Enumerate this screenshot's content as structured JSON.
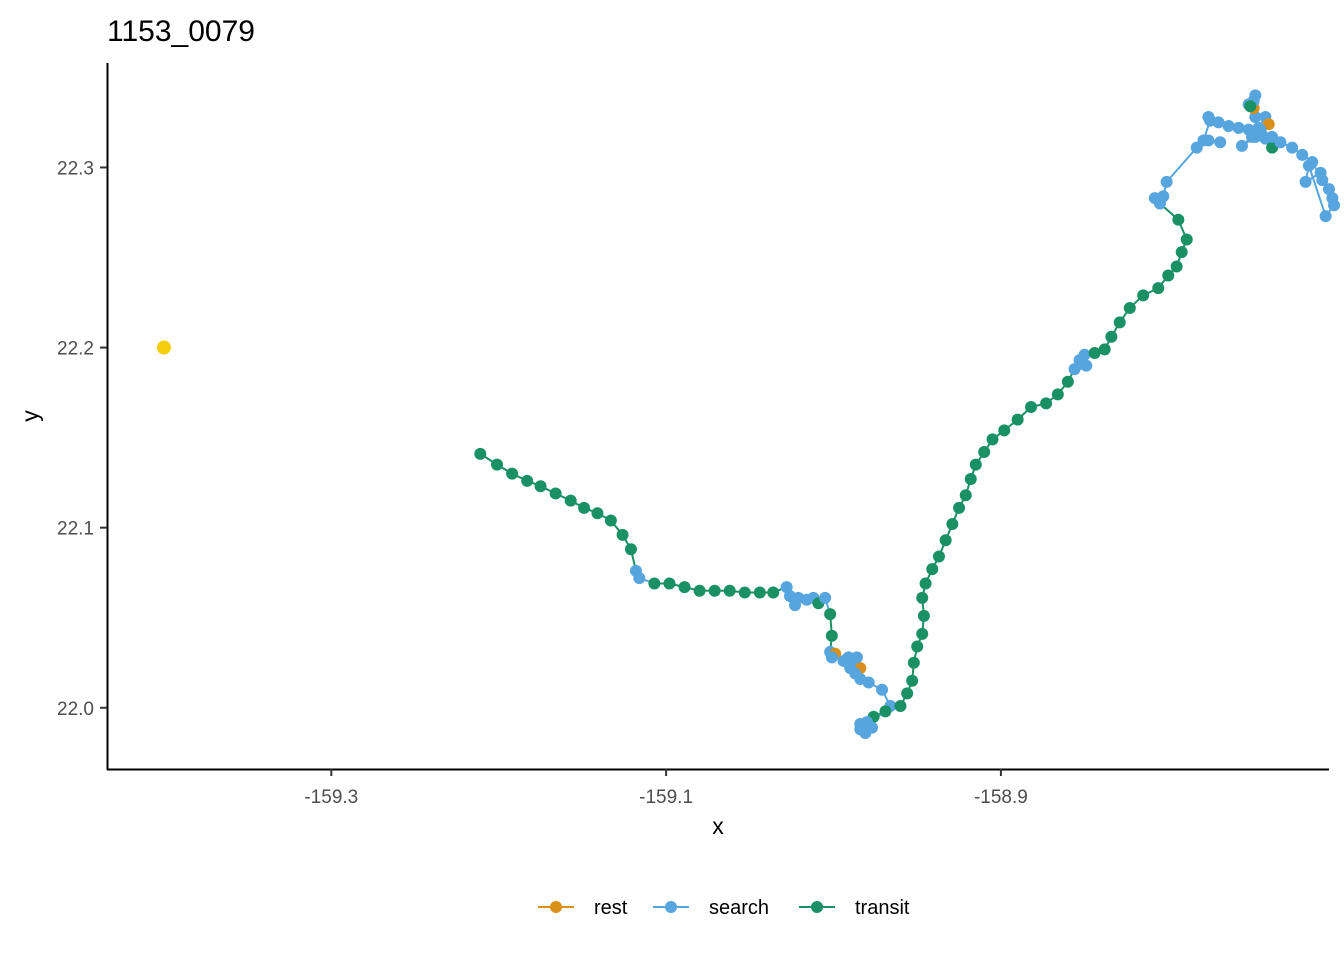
{
  "chart_data": {
    "type": "line",
    "title": "1153_0079",
    "xlabel": "x",
    "ylabel": "y",
    "xlim": [
      -159.434,
      -158.704
    ],
    "ylim": [
      21.966,
      22.358
    ],
    "x_ticks": [
      {
        "value": -159.3,
        "label": "-159.3"
      },
      {
        "value": -159.1,
        "label": "-159.1"
      },
      {
        "value": -158.9,
        "label": "-158.9"
      }
    ],
    "y_ticks": [
      {
        "value": 22.0,
        "label": "22.0"
      },
      {
        "value": 22.1,
        "label": "22.1"
      },
      {
        "value": 22.2,
        "label": "22.2"
      },
      {
        "value": 22.3,
        "label": "22.3"
      }
    ],
    "grid": false,
    "legend_position": "bottom",
    "legend": [
      {
        "key": "rest",
        "label": "rest",
        "color": "#D8901A"
      },
      {
        "key": "search",
        "label": "search",
        "color": "#56A5DF"
      },
      {
        "key": "transit",
        "label": "transit",
        "color": "#1A9165"
      }
    ],
    "reference_point": {
      "x": -159.4,
      "y": 22.2,
      "color": "#F5CE0C"
    },
    "track": [
      {
        "x": -159.211,
        "y": 22.141,
        "s": "transit"
      },
      {
        "x": -159.201,
        "y": 22.135,
        "s": "transit"
      },
      {
        "x": -159.192,
        "y": 22.13,
        "s": "transit"
      },
      {
        "x": -159.183,
        "y": 22.126,
        "s": "transit"
      },
      {
        "x": -159.175,
        "y": 22.123,
        "s": "transit"
      },
      {
        "x": -159.166,
        "y": 22.119,
        "s": "transit"
      },
      {
        "x": -159.157,
        "y": 22.115,
        "s": "transit"
      },
      {
        "x": -159.149,
        "y": 22.111,
        "s": "transit"
      },
      {
        "x": -159.141,
        "y": 22.108,
        "s": "transit"
      },
      {
        "x": -159.133,
        "y": 22.104,
        "s": "transit"
      },
      {
        "x": -159.126,
        "y": 22.096,
        "s": "transit"
      },
      {
        "x": -159.121,
        "y": 22.088,
        "s": "transit"
      },
      {
        "x": -159.118,
        "y": 22.076,
        "s": "search"
      },
      {
        "x": -159.116,
        "y": 22.072,
        "s": "search"
      },
      {
        "x": -159.107,
        "y": 22.069,
        "s": "transit"
      },
      {
        "x": -159.098,
        "y": 22.069,
        "s": "transit"
      },
      {
        "x": -159.089,
        "y": 22.067,
        "s": "transit"
      },
      {
        "x": -159.08,
        "y": 22.065,
        "s": "transit"
      },
      {
        "x": -159.071,
        "y": 22.065,
        "s": "transit"
      },
      {
        "x": -159.062,
        "y": 22.065,
        "s": "transit"
      },
      {
        "x": -159.053,
        "y": 22.064,
        "s": "transit"
      },
      {
        "x": -159.044,
        "y": 22.064,
        "s": "transit"
      },
      {
        "x": -159.036,
        "y": 22.064,
        "s": "transit"
      },
      {
        "x": -159.028,
        "y": 22.067,
        "s": "search"
      },
      {
        "x": -159.026,
        "y": 22.062,
        "s": "search"
      },
      {
        "x": -159.023,
        "y": 22.057,
        "s": "search"
      },
      {
        "x": -159.021,
        "y": 22.061,
        "s": "search"
      },
      {
        "x": -159.016,
        "y": 22.06,
        "s": "search"
      },
      {
        "x": -159.012,
        "y": 22.061,
        "s": "search"
      },
      {
        "x": -159.009,
        "y": 22.058,
        "s": "transit"
      },
      {
        "x": -159.005,
        "y": 22.061,
        "s": "search"
      },
      {
        "x": -159.002,
        "y": 22.052,
        "s": "transit"
      },
      {
        "x": -159.001,
        "y": 22.04,
        "s": "transit"
      },
      {
        "x": -159.002,
        "y": 22.031,
        "s": "search"
      },
      {
        "x": -158.999,
        "y": 22.03,
        "s": "rest"
      },
      {
        "x": -159.001,
        "y": 22.028,
        "s": "search"
      },
      {
        "x": -158.994,
        "y": 22.026,
        "s": "search"
      },
      {
        "x": -158.991,
        "y": 22.028,
        "s": "search"
      },
      {
        "x": -158.988,
        "y": 22.024,
        "s": "search"
      },
      {
        "x": -158.984,
        "y": 22.022,
        "s": "rest"
      },
      {
        "x": -158.986,
        "y": 22.028,
        "s": "search"
      },
      {
        "x": -158.99,
        "y": 22.022,
        "s": "search"
      },
      {
        "x": -158.987,
        "y": 22.019,
        "s": "search"
      },
      {
        "x": -158.984,
        "y": 22.016,
        "s": "search"
      },
      {
        "x": -158.979,
        "y": 22.014,
        "s": "search"
      },
      {
        "x": -158.971,
        "y": 22.01,
        "s": "search"
      },
      {
        "x": -158.966,
        "y": 22.001,
        "s": "search"
      },
      {
        "x": -158.969,
        "y": 21.998,
        "s": "transit"
      },
      {
        "x": -158.976,
        "y": 21.995,
        "s": "transit"
      },
      {
        "x": -158.981,
        "y": 21.991,
        "s": "search"
      },
      {
        "x": -158.984,
        "y": 21.988,
        "s": "search"
      },
      {
        "x": -158.981,
        "y": 21.986,
        "s": "search"
      },
      {
        "x": -158.977,
        "y": 21.989,
        "s": "search"
      },
      {
        "x": -158.98,
        "y": 21.992,
        "s": "search"
      },
      {
        "x": -158.984,
        "y": 21.991,
        "s": "search"
      },
      {
        "x": -158.96,
        "y": 22.001,
        "s": "transit"
      },
      {
        "x": -158.956,
        "y": 22.008,
        "s": "transit"
      },
      {
        "x": -158.953,
        "y": 22.015,
        "s": "transit"
      },
      {
        "x": -158.952,
        "y": 22.025,
        "s": "transit"
      },
      {
        "x": -158.95,
        "y": 22.034,
        "s": "transit"
      },
      {
        "x": -158.947,
        "y": 22.041,
        "s": "transit"
      },
      {
        "x": -158.946,
        "y": 22.051,
        "s": "transit"
      },
      {
        "x": -158.947,
        "y": 22.061,
        "s": "transit"
      },
      {
        "x": -158.945,
        "y": 22.069,
        "s": "transit"
      },
      {
        "x": -158.941,
        "y": 22.077,
        "s": "transit"
      },
      {
        "x": -158.937,
        "y": 22.084,
        "s": "transit"
      },
      {
        "x": -158.933,
        "y": 22.093,
        "s": "transit"
      },
      {
        "x": -158.929,
        "y": 22.102,
        "s": "transit"
      },
      {
        "x": -158.925,
        "y": 22.111,
        "s": "transit"
      },
      {
        "x": -158.921,
        "y": 22.118,
        "s": "transit"
      },
      {
        "x": -158.918,
        "y": 22.127,
        "s": "transit"
      },
      {
        "x": -158.915,
        "y": 22.135,
        "s": "transit"
      },
      {
        "x": -158.91,
        "y": 22.142,
        "s": "transit"
      },
      {
        "x": -158.905,
        "y": 22.149,
        "s": "transit"
      },
      {
        "x": -158.898,
        "y": 22.154,
        "s": "transit"
      },
      {
        "x": -158.89,
        "y": 22.16,
        "s": "transit"
      },
      {
        "x": -158.882,
        "y": 22.167,
        "s": "transit"
      },
      {
        "x": -158.873,
        "y": 22.169,
        "s": "transit"
      },
      {
        "x": -158.866,
        "y": 22.174,
        "s": "transit"
      },
      {
        "x": -158.86,
        "y": 22.181,
        "s": "transit"
      },
      {
        "x": -158.856,
        "y": 22.188,
        "s": "search"
      },
      {
        "x": -158.852,
        "y": 22.191,
        "s": "search"
      },
      {
        "x": -158.85,
        "y": 22.196,
        "s": "search"
      },
      {
        "x": -158.849,
        "y": 22.19,
        "s": "search"
      },
      {
        "x": -158.853,
        "y": 22.193,
        "s": "search"
      },
      {
        "x": -158.844,
        "y": 22.197,
        "s": "transit"
      },
      {
        "x": -158.838,
        "y": 22.199,
        "s": "transit"
      },
      {
        "x": -158.834,
        "y": 22.206,
        "s": "transit"
      },
      {
        "x": -158.829,
        "y": 22.214,
        "s": "transit"
      },
      {
        "x": -158.823,
        "y": 22.222,
        "s": "transit"
      },
      {
        "x": -158.815,
        "y": 22.229,
        "s": "transit"
      },
      {
        "x": -158.806,
        "y": 22.233,
        "s": "transit"
      },
      {
        "x": -158.8,
        "y": 22.24,
        "s": "transit"
      },
      {
        "x": -158.795,
        "y": 22.245,
        "s": "transit"
      },
      {
        "x": -158.792,
        "y": 22.253,
        "s": "transit"
      },
      {
        "x": -158.789,
        "y": 22.26,
        "s": "transit"
      },
      {
        "x": -158.794,
        "y": 22.271,
        "s": "transit"
      },
      {
        "x": -158.805,
        "y": 22.28,
        "s": "search"
      },
      {
        "x": -158.808,
        "y": 22.283,
        "s": "search"
      },
      {
        "x": -158.803,
        "y": 22.284,
        "s": "search"
      },
      {
        "x": -158.801,
        "y": 22.292,
        "s": "search"
      },
      {
        "x": -158.783,
        "y": 22.311,
        "s": "search"
      },
      {
        "x": -158.776,
        "y": 22.315,
        "s": "search"
      },
      {
        "x": -158.769,
        "y": 22.314,
        "s": "search"
      },
      {
        "x": -158.779,
        "y": 22.315,
        "s": "search"
      },
      {
        "x": -158.775,
        "y": 22.326,
        "s": "search"
      },
      {
        "x": -158.776,
        "y": 22.328,
        "s": "search"
      },
      {
        "x": -158.77,
        "y": 22.325,
        "s": "search"
      },
      {
        "x": -158.764,
        "y": 22.323,
        "s": "search"
      },
      {
        "x": -158.758,
        "y": 22.322,
        "s": "search"
      },
      {
        "x": -158.752,
        "y": 22.321,
        "s": "search"
      },
      {
        "x": -158.748,
        "y": 22.317,
        "s": "search"
      },
      {
        "x": -158.756,
        "y": 22.312,
        "s": "search"
      },
      {
        "x": -158.75,
        "y": 22.317,
        "s": "search"
      },
      {
        "x": -158.746,
        "y": 22.322,
        "s": "search"
      },
      {
        "x": -158.742,
        "y": 22.328,
        "s": "search"
      },
      {
        "x": -158.74,
        "y": 22.324,
        "s": "rest"
      },
      {
        "x": -158.745,
        "y": 22.321,
        "s": "search"
      },
      {
        "x": -158.742,
        "y": 22.316,
        "s": "search"
      },
      {
        "x": -158.738,
        "y": 22.311,
        "s": "transit"
      },
      {
        "x": -158.744,
        "y": 22.318,
        "s": "search"
      },
      {
        "x": -158.748,
        "y": 22.328,
        "s": "search"
      },
      {
        "x": -158.749,
        "y": 22.333,
        "s": "rest"
      },
      {
        "x": -158.752,
        "y": 22.335,
        "s": "search"
      },
      {
        "x": -158.748,
        "y": 22.34,
        "s": "search"
      },
      {
        "x": -158.749,
        "y": 22.337,
        "s": "search"
      },
      {
        "x": -158.751,
        "y": 22.334,
        "s": "transit"
      },
      {
        "x": -158.745,
        "y": 22.32,
        "s": "search"
      },
      {
        "x": -158.738,
        "y": 22.317,
        "s": "search"
      },
      {
        "x": -158.733,
        "y": 22.314,
        "s": "search"
      },
      {
        "x": -158.726,
        "y": 22.311,
        "s": "search"
      },
      {
        "x": -158.72,
        "y": 22.307,
        "s": "search"
      },
      {
        "x": -158.714,
        "y": 22.303,
        "s": "search"
      },
      {
        "x": -158.708,
        "y": 22.293,
        "s": "search"
      },
      {
        "x": -158.704,
        "y": 22.288,
        "s": "search"
      },
      {
        "x": -158.702,
        "y": 22.283,
        "s": "search"
      },
      {
        "x": -158.701,
        "y": 22.279,
        "s": "search"
      },
      {
        "x": -158.706,
        "y": 22.273,
        "s": "search"
      },
      {
        "x": -158.716,
        "y": 22.301,
        "s": "search"
      },
      {
        "x": -158.718,
        "y": 22.292,
        "s": "search"
      },
      {
        "x": -158.709,
        "y": 22.297,
        "s": "search"
      }
    ]
  }
}
